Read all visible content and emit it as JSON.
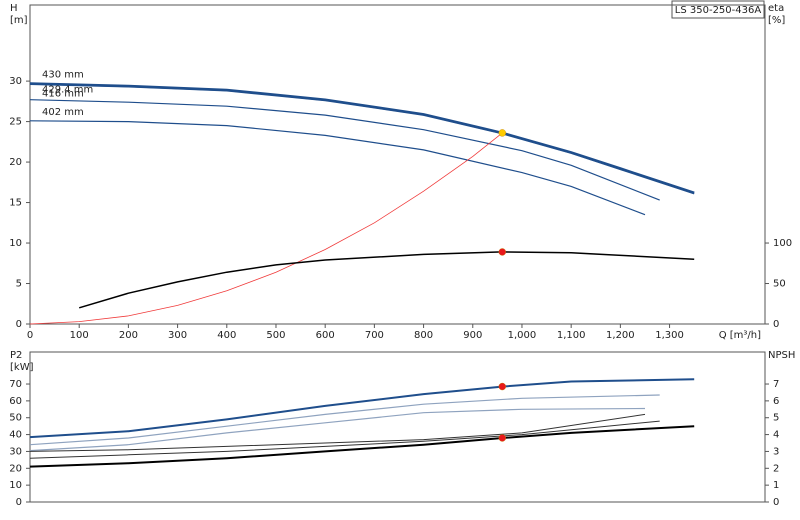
{
  "chart_data": [
    {
      "type": "line",
      "annotation": "LS 350-250-436A",
      "x_label": "Q [m³/h]",
      "y_label": [
        "H",
        "[m]"
      ],
      "y2_label": [
        "eta",
        "[%]"
      ],
      "xlim": [
        0,
        1494
      ],
      "xticks": [
        0,
        100,
        200,
        300,
        400,
        500,
        600,
        700,
        800,
        900,
        {
          "value": 1000,
          "label": "1,000"
        },
        {
          "value": 1100,
          "label": "1,100"
        },
        {
          "value": 1200,
          "label": "1,200"
        },
        {
          "value": 1300,
          "label": "1,300"
        }
      ],
      "ylim": [
        0,
        39.4
      ],
      "yticks": [
        0,
        5,
        10,
        15,
        20,
        25,
        30
      ],
      "y2lim": [
        0,
        394
      ],
      "y2ticks": [
        0,
        50,
        100
      ],
      "series": [
        {
          "name": "430 mm",
          "color": "#1f4e8c",
          "linewidth": 2.5,
          "x": [
            0,
            200,
            400,
            600,
            800,
            960,
            1100,
            1200,
            1350
          ],
          "values": [
            29.7,
            29.4,
            28.9,
            27.7,
            25.9,
            23.6,
            21.2,
            19.2,
            16.2
          ]
        },
        {
          "name": "429.4 mm",
          "color": "#1f4e8c",
          "linewidth": 1.5,
          "x": [
            0,
            200,
            400,
            600,
            800,
            960,
            1100,
            1200,
            1350
          ],
          "values": [
            29.6,
            29.3,
            28.8,
            27.6,
            25.8,
            23.5,
            21.1,
            19.1,
            16.1
          ]
        },
        {
          "name": "416 mm",
          "color": "#1f4e8c",
          "linewidth": 1.2,
          "x": [
            0,
            200,
            400,
            600,
            800,
            1000,
            1100,
            1280
          ],
          "values": [
            27.7,
            27.4,
            26.9,
            25.8,
            24.0,
            21.4,
            19.6,
            15.3
          ]
        },
        {
          "name": "402 mm",
          "color": "#1f4e8c",
          "linewidth": 1.2,
          "x": [
            0,
            200,
            400,
            600,
            800,
            1000,
            1100,
            1250
          ],
          "values": [
            25.1,
            25.0,
            24.5,
            23.3,
            21.5,
            18.7,
            17.0,
            13.5
          ]
        },
        {
          "color": "#f03a3a",
          "linewidth": 0.8,
          "x": [
            0,
            100,
            200,
            300,
            400,
            500,
            600,
            700,
            800,
            900,
            960
          ],
          "values": [
            0,
            0.3,
            1.0,
            2.3,
            4.1,
            6.4,
            9.2,
            12.5,
            16.4,
            20.7,
            23.6
          ]
        },
        {
          "color": "#000000",
          "linewidth": 1.5,
          "axis": "y2",
          "x": [
            100,
            200,
            300,
            400,
            500,
            600,
            800,
            960,
            1100,
            1350
          ],
          "values": [
            20,
            38,
            52,
            64,
            73,
            79,
            86,
            89,
            88,
            80
          ]
        }
      ],
      "points": [
        {
          "x": 960,
          "y": 23.6,
          "color": "#ffcc00"
        },
        {
          "x": 960,
          "y": 89,
          "axis": "y2",
          "color": "#e8191c"
        }
      ]
    },
    {
      "type": "line",
      "y_label": [
        "P2",
        "[kW]"
      ],
      "y2_label": [
        "NPSH"
      ],
      "xlim": [
        0,
        1494
      ],
      "ylim": [
        0,
        89
      ],
      "yticks": [
        0,
        10,
        20,
        30,
        40,
        50,
        60,
        70
      ],
      "y2lim": [
        0,
        8.9
      ],
      "y2ticks": [
        0,
        1,
        2,
        3,
        4,
        5,
        6,
        7
      ],
      "series": [
        {
          "color": "#1f4e8c",
          "linewidth": 2,
          "x": [
            0,
            200,
            400,
            600,
            800,
            960,
            1100,
            1350
          ],
          "values": [
            38.5,
            42,
            49,
            57,
            64,
            68.5,
            71.5,
            72.8
          ]
        },
        {
          "color": "#8fa3bf",
          "linewidth": 1.2,
          "x": [
            0,
            200,
            400,
            600,
            800,
            1000,
            1280
          ],
          "values": [
            34,
            38,
            45,
            52,
            58,
            61.5,
            63.5
          ]
        },
        {
          "color": "#8fa3bf",
          "linewidth": 1.2,
          "x": [
            0,
            200,
            400,
            600,
            800,
            1000,
            1250
          ],
          "values": [
            30.5,
            34,
            41,
            47,
            53,
            55,
            55.5
          ]
        },
        {
          "color": "#000000",
          "linewidth": 2,
          "axis": "y2",
          "x": [
            0,
            200,
            400,
            600,
            800,
            960,
            1100,
            1350
          ],
          "values": [
            2.1,
            2.3,
            2.6,
            3.0,
            3.4,
            3.8,
            4.1,
            4.5
          ]
        },
        {
          "color": "#333333",
          "linewidth": 1,
          "axis": "y2",
          "x": [
            0,
            200,
            400,
            600,
            800,
            1000,
            1280
          ],
          "values": [
            2.6,
            2.8,
            3.0,
            3.3,
            3.6,
            4.0,
            4.8
          ]
        },
        {
          "color": "#333333",
          "linewidth": 1,
          "axis": "y2",
          "x": [
            0,
            200,
            400,
            600,
            800,
            1000,
            1250
          ],
          "values": [
            3.0,
            3.1,
            3.3,
            3.5,
            3.7,
            4.1,
            5.2
          ]
        }
      ],
      "points": [
        {
          "x": 960,
          "y": 68.5,
          "color": "#e8191c"
        },
        {
          "x": 960,
          "y": 3.8,
          "axis": "y2",
          "color": "#e8191c"
        }
      ]
    }
  ]
}
